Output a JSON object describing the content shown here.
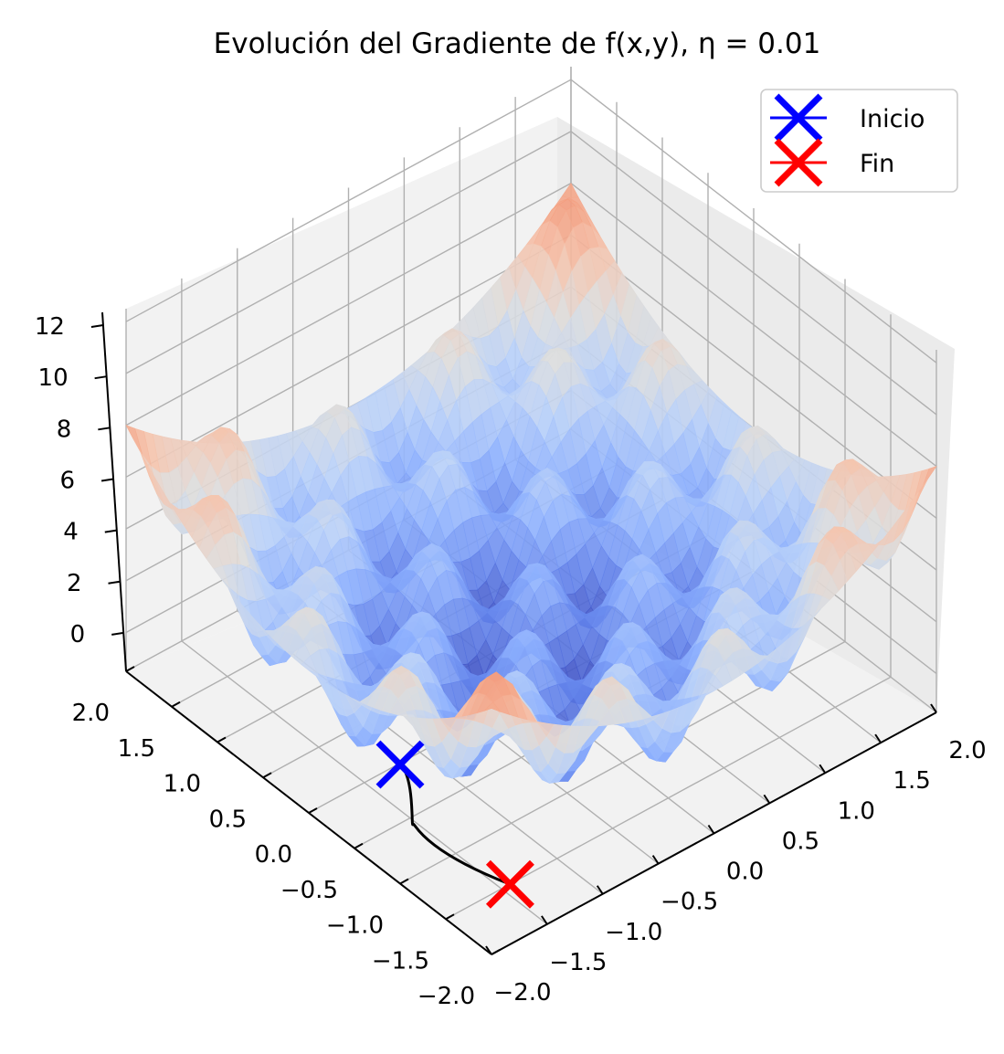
{
  "chart_data": {
    "type": "surface3d",
    "title": "Evolución del Gradiente de f(x,y), η = 0.01",
    "xlabel": "",
    "ylabel": "",
    "zlabel": "",
    "xlim": [
      -2.0,
      2.0
    ],
    "ylim": [
      -2.0,
      2.0
    ],
    "zlim": [
      -1.5,
      12.5
    ],
    "x_ticks": [
      "−2.0",
      "−1.5",
      "−1.0",
      "−0.5",
      "0.0",
      "0.5",
      "1.0",
      "1.5",
      "2.0"
    ],
    "y_ticks": [
      "−2.0",
      "−1.5",
      "−1.0",
      "−0.5",
      "0.0",
      "0.5",
      "1.0",
      "1.5",
      "2.0"
    ],
    "z_ticks": [
      "0",
      "2",
      "4",
      "6",
      "8",
      "10",
      "12"
    ],
    "colormap": "coolwarm",
    "grid": true,
    "legend_position": "top-right",
    "legend": [
      {
        "label": "Inicio",
        "color": "#0000ff",
        "marker": "x"
      },
      {
        "label": "Fin",
        "color": "#ff0000",
        "marker": "x"
      }
    ],
    "path_color": "#000000",
    "path": {
      "start": {
        "x": -2.0,
        "y": -1.0,
        "z": 3.1
      },
      "end": {
        "x": -1.75,
        "y": -1.9,
        "z": 0.35
      }
    }
  }
}
